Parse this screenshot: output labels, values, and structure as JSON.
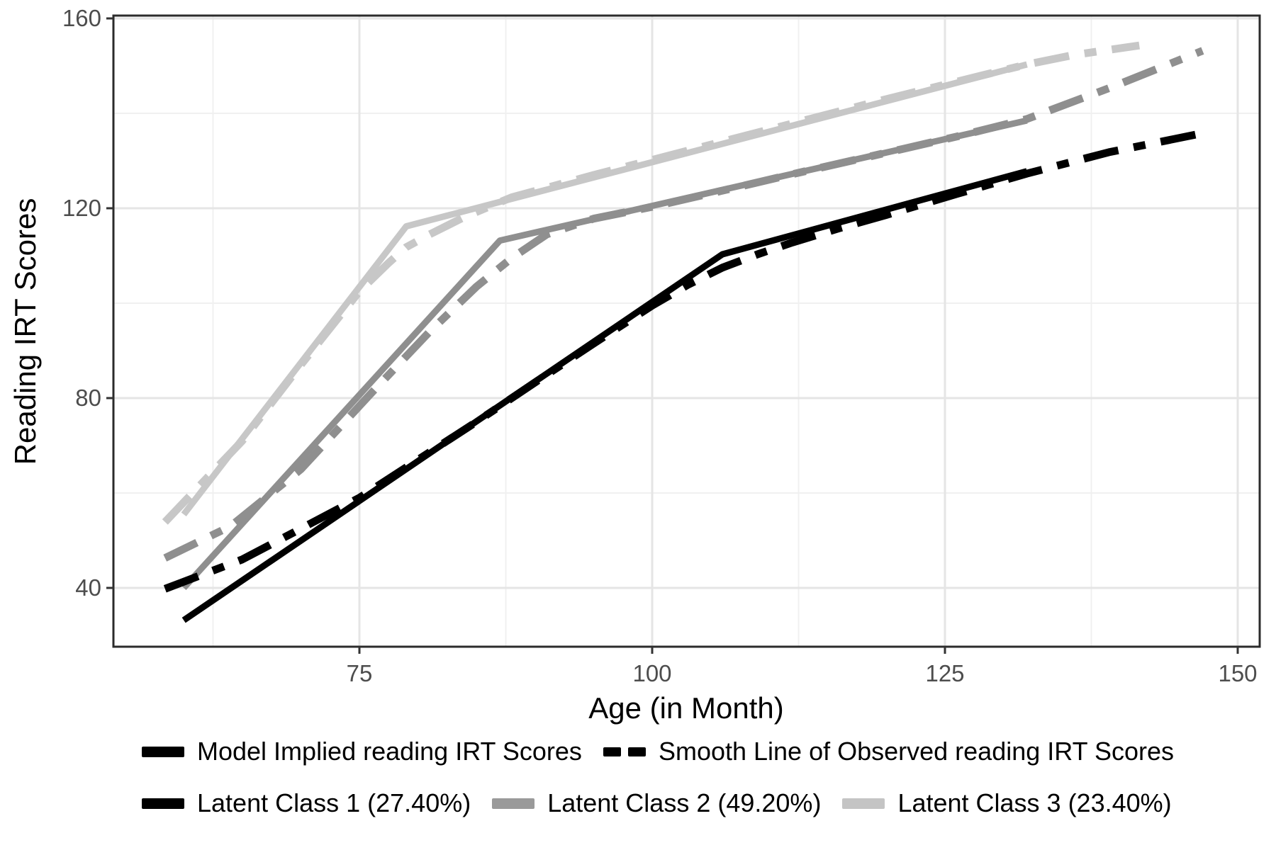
{
  "chart_data": {
    "type": "line",
    "title": "",
    "xlabel": "Age (in Month)",
    "ylabel": "Reading IRT Scores",
    "x_ticks": [
      75,
      100,
      125,
      150
    ],
    "y_ticks": [
      40,
      80,
      120,
      160
    ],
    "xlim": [
      54,
      152
    ],
    "ylim": [
      27.5,
      160.5
    ],
    "grid": "major and minor gridlines, light gray on white panel, dark panel border",
    "legend_position": "bottom",
    "line_kinds": {
      "solid": "Model Implied reading IRT Scores",
      "dashed": "Smooth Line of Observed reading IRT Scores"
    },
    "series": [
      {
        "id": "class3-model",
        "name": "Latent Class 3 (23.40%) - Model Implied reading IRT Scores",
        "color": "#c7c7c7",
        "line_style": "solid",
        "points": [
          [
            60,
            55.5
          ],
          [
            79,
            116.2
          ],
          [
            132,
            150.3
          ]
        ]
      },
      {
        "id": "class3-observed",
        "name": "Latent Class 3 (23.40%) - Smooth Line of Observed reading IRT Scores",
        "color": "#c7c7c7",
        "line_style": "dashed",
        "points": [
          [
            58.4,
            53.9
          ],
          [
            65,
            71
          ],
          [
            70,
            87
          ],
          [
            75,
            102.5
          ],
          [
            77.5,
            108.5
          ],
          [
            79,
            111.8
          ],
          [
            81,
            114.5
          ],
          [
            84,
            118.2
          ],
          [
            88,
            122.3
          ],
          [
            95,
            127
          ],
          [
            100,
            130.2
          ],
          [
            110,
            136.6
          ],
          [
            120,
            143
          ],
          [
            128,
            147.9
          ],
          [
            132,
            150.3
          ],
          [
            136,
            152.3
          ],
          [
            141.6,
            154.3
          ]
        ]
      },
      {
        "id": "class2-model",
        "name": "Latent Class 2 (49.20%) - Model Implied reading IRT Scores",
        "color": "#8f8f8f",
        "line_style": "solid",
        "points": [
          [
            60,
            40
          ],
          [
            87,
            113.2
          ],
          [
            132,
            138.5
          ]
        ]
      },
      {
        "id": "class2-observed",
        "name": "Latent Class 2 (49.20%) - Smooth Line of Observed reading IRT Scores",
        "color": "#8f8f8f",
        "line_style": "dashed",
        "points": [
          [
            58.4,
            46.3
          ],
          [
            64,
            53
          ],
          [
            70,
            65
          ],
          [
            76,
            81
          ],
          [
            81,
            94
          ],
          [
            85,
            103.5
          ],
          [
            88,
            109.5
          ],
          [
            91,
            114.5
          ],
          [
            95,
            117.8
          ],
          [
            100,
            120.3
          ],
          [
            106,
            123.7
          ],
          [
            112,
            127.2
          ],
          [
            120,
            131.7
          ],
          [
            126,
            135.1
          ],
          [
            132,
            138.8
          ],
          [
            139,
            145.3
          ],
          [
            147,
            153.2
          ]
        ]
      },
      {
        "id": "class1-model",
        "name": "Latent Class 1 (27.40%) - Model Implied reading IRT Scores",
        "color": "#000000",
        "line_style": "solid",
        "points": [
          [
            60,
            33.2
          ],
          [
            106,
            110.3
          ],
          [
            132,
            127.8
          ]
        ]
      },
      {
        "id": "class1-observed",
        "name": "Latent Class 1 (27.40%) - Smooth Line of Observed reading IRT Scores",
        "color": "#000000",
        "line_style": "dashed",
        "points": [
          [
            58.4,
            39.8
          ],
          [
            65,
            46
          ],
          [
            70,
            52.5
          ],
          [
            75,
            59
          ],
          [
            80,
            67
          ],
          [
            85,
            75
          ],
          [
            90,
            83.3
          ],
          [
            95,
            91.5
          ],
          [
            100,
            99.5
          ],
          [
            103,
            103.8
          ],
          [
            106,
            107.5
          ],
          [
            109,
            110.3
          ],
          [
            112,
            112.8
          ],
          [
            116,
            115.8
          ],
          [
            120,
            118.6
          ],
          [
            126,
            123
          ],
          [
            132,
            127.3
          ],
          [
            139,
            131.8
          ],
          [
            147,
            135.8
          ]
        ]
      }
    ]
  },
  "legend": {
    "row1": [
      {
        "swatch": "solid",
        "color": "#000000",
        "label": "Model Implied reading IRT Scores"
      },
      {
        "swatch": "dashed",
        "color": "#000000",
        "label": "Smooth Line of Observed reading IRT Scores"
      }
    ],
    "row2": [
      {
        "swatch": "solid",
        "color": "#000000",
        "label": "Latent Class 1 (27.40%)"
      },
      {
        "swatch": "solid",
        "color": "#9a9a9a",
        "label": "Latent Class 2 (49.20%)"
      },
      {
        "swatch": "solid",
        "color": "#c4c4c4",
        "label": "Latent Class 3 (23.40%)"
      }
    ]
  }
}
